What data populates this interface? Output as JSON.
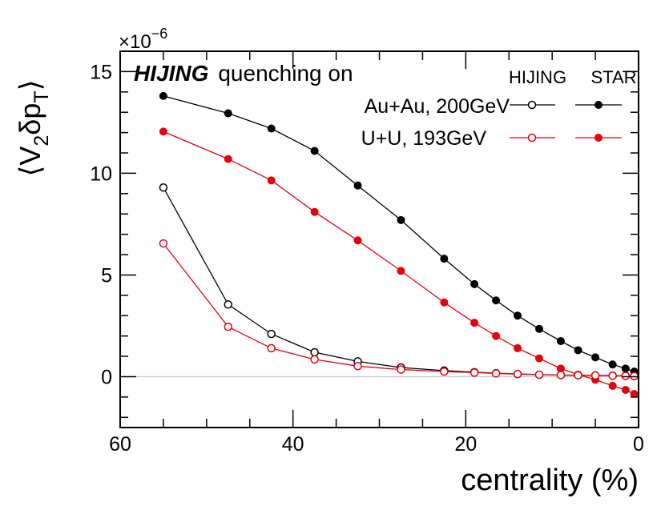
{
  "chart_data": {
    "type": "line",
    "title": "",
    "xlabel": "centrality (%)",
    "ylabel_parts": [
      "⟨V",
      "2",
      "δp",
      "T",
      "⟩"
    ],
    "y_multiplier": [
      "×10",
      "−6"
    ],
    "xlim": [
      60,
      0
    ],
    "ylim": [
      -2.5,
      16
    ],
    "x_ticks": [
      60,
      40,
      20,
      0
    ],
    "x_tick_labels": [
      "60",
      "40",
      "20",
      "0"
    ],
    "y_ticks": [
      0,
      5,
      10,
      15
    ],
    "y_tick_labels": [
      "0",
      "5",
      "10",
      "15"
    ],
    "grid": false,
    "zero_line": true,
    "annotation": {
      "bold_italic": "HIJING",
      "plain": "quenching on"
    },
    "legend": {
      "placement": "top-right",
      "column_headers": [
        "HIJING",
        "STAR"
      ],
      "rows": [
        {
          "label": "Au+Au, 200GeV",
          "color": "#000000"
        },
        {
          "label": "U+U, 193GeV",
          "color": "#e8000b"
        }
      ]
    },
    "series": [
      {
        "name": "Au+Au, 200GeV STAR",
        "color": "#000000",
        "marker": "filled",
        "x": [
          55,
          47.5,
          42.5,
          37.5,
          32.5,
          27.5,
          22.5,
          19,
          16.5,
          14,
          11.5,
          9,
          7,
          5,
          3,
          1.5,
          0.5
        ],
        "y": [
          13.8,
          12.95,
          12.2,
          11.1,
          9.4,
          7.7,
          5.8,
          4.55,
          3.75,
          3.0,
          2.35,
          1.75,
          1.3,
          0.95,
          0.6,
          0.4,
          0.25
        ]
      },
      {
        "name": "U+U, 193GeV STAR",
        "color": "#e8000b",
        "marker": "filled",
        "x": [
          55,
          47.5,
          42.5,
          37.5,
          32.5,
          27.5,
          22.5,
          19,
          16.5,
          14,
          11.5,
          9,
          7,
          5,
          3,
          1.5,
          0.5
        ],
        "y": [
          12.05,
          10.7,
          9.65,
          8.1,
          6.7,
          5.2,
          3.65,
          2.65,
          2.0,
          1.4,
          0.9,
          0.4,
          0.1,
          -0.15,
          -0.45,
          -0.65,
          -0.85
        ]
      },
      {
        "name": "Au+Au, 200GeV HIJING",
        "color": "#000000",
        "marker": "open",
        "x": [
          55,
          47.5,
          42.5,
          37.5,
          32.5,
          27.5,
          22.5,
          19,
          16.5,
          14,
          11.5,
          9,
          7,
          5,
          3,
          1.5,
          0.5
        ],
        "y": [
          9.3,
          3.55,
          2.1,
          1.2,
          0.75,
          0.45,
          0.3,
          0.22,
          0.17,
          0.13,
          0.1,
          0.08,
          0.07,
          0.06,
          0.05,
          0.04,
          0.03
        ]
      },
      {
        "name": "U+U, 193GeV HIJING",
        "color": "#e8000b",
        "marker": "open",
        "x": [
          55,
          47.5,
          42.5,
          37.5,
          32.5,
          27.5,
          22.5,
          19,
          16.5,
          14,
          11.5,
          9,
          7,
          5,
          3,
          1.5,
          0.5
        ],
        "y": [
          6.55,
          2.45,
          1.4,
          0.85,
          0.52,
          0.35,
          0.25,
          0.2,
          0.16,
          0.13,
          0.1,
          0.08,
          0.07,
          0.06,
          0.05,
          0.04,
          0.03
        ]
      }
    ]
  }
}
